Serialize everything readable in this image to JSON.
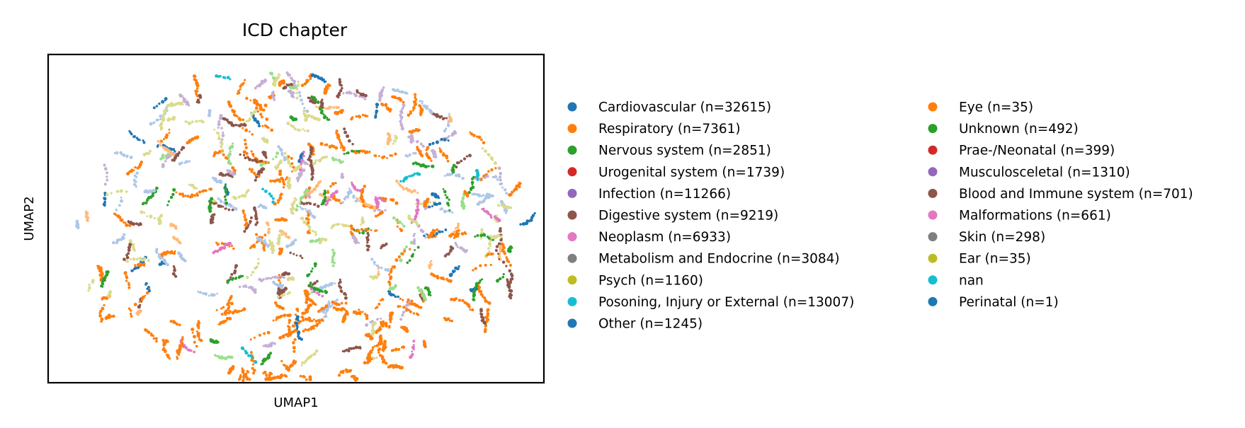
{
  "chart_data": {
    "type": "scatter",
    "title": "ICD chapter",
    "xlabel": "UMAP1",
    "ylabel": "UMAP2",
    "grid": false,
    "axis_ticks": false,
    "legend_placement": "right-outside, two columns",
    "legend": [
      {
        "label": "Cardiovascular (n=32615)",
        "color": "#1f77b4"
      },
      {
        "label": "Respiratory (n=7361)",
        "color": "#ff7f0e"
      },
      {
        "label": "Nervous system (n=2851)",
        "color": "#2ca02c"
      },
      {
        "label": "Urogenital system (n=1739)",
        "color": "#d62728"
      },
      {
        "label": "Infection (n=11266)",
        "color": "#9467bd"
      },
      {
        "label": "Digestive system (n=9219)",
        "color": "#8c564b"
      },
      {
        "label": "Neoplasm (n=6933)",
        "color": "#e377c2"
      },
      {
        "label": "Metabolism and Endocrine (n=3084)",
        "color": "#7f7f7f"
      },
      {
        "label": "Psych (n=1160)",
        "color": "#bcbd22"
      },
      {
        "label": "Posoning, Injury or External (n=13007)",
        "color": "#17becf"
      },
      {
        "label": "Other (n=1245)",
        "color": "#1f77b4"
      },
      {
        "label": "Eye (n=35)",
        "color": "#ff7f0e"
      },
      {
        "label": "Unknown (n=492)",
        "color": "#2ca02c"
      },
      {
        "label": "Prae-/Neonatal (n=399)",
        "color": "#d62728"
      },
      {
        "label": "Musculosceletal (n=1310)",
        "color": "#9467bd"
      },
      {
        "label": "Blood and Immune system (n=701)",
        "color": "#8c564b"
      },
      {
        "label": "Malformations (n=661)",
        "color": "#e377c2"
      },
      {
        "label": "Skin (n=298)",
        "color": "#7f7f7f"
      },
      {
        "label": "Ear (n=35)",
        "color": "#bcbd22"
      },
      {
        "label": "nan",
        "color": "#17becf"
      },
      {
        "label": "Perinatal (n=1)",
        "color": "#1f77b4"
      }
    ],
    "plotted_colors": [
      "#ff7f0e",
      "#aec7e8",
      "#8c564b",
      "#c5b0d5",
      "#dbdb8d",
      "#2ca02c",
      "#ffbb78",
      "#98df8a",
      "#17becf",
      "#e377c2",
      "#1f77b4"
    ]
  }
}
